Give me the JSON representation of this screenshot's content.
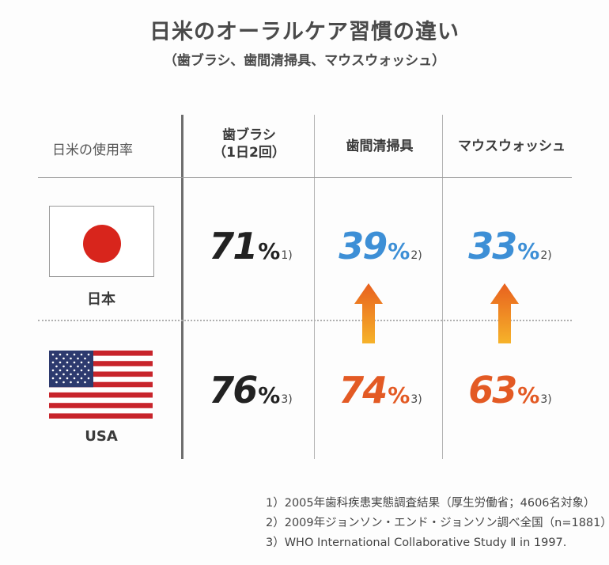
{
  "title": "日米のオーラルケア習慣の違い",
  "subtitle": "（歯ブラシ、歯間清掃具、マウスウォッシュ）",
  "table": {
    "row_header_label": "日米の使用率",
    "columns": [
      {
        "line1": "歯ブラシ",
        "line2": "（1日2回）"
      },
      {
        "line1": "歯間清掃具",
        "line2": ""
      },
      {
        "line1": "マウスウォッシュ",
        "line2": ""
      }
    ],
    "rows": [
      {
        "country": "日本",
        "flag": "japan-flag",
        "cells": [
          {
            "value": "71",
            "unit": "%",
            "ref": "1)",
            "color": "#222222"
          },
          {
            "value": "39",
            "unit": "%",
            "ref": "2)",
            "color": "#3d8fd6"
          },
          {
            "value": "33",
            "unit": "%",
            "ref": "2)",
            "color": "#3d8fd6"
          }
        ]
      },
      {
        "country": "USA",
        "flag": "usa-flag",
        "cells": [
          {
            "value": "76",
            "unit": "%",
            "ref": "3)",
            "color": "#222222"
          },
          {
            "value": "74",
            "unit": "%",
            "ref": "3)",
            "color": "#e35a24"
          },
          {
            "value": "63",
            "unit": "%",
            "ref": "3)",
            "color": "#e35a24"
          }
        ]
      }
    ],
    "arrow_icon": "up-arrow-icon"
  },
  "notes": [
    "1）2005年歯科疾患実態調査結果（厚生労働省；4606名対象）",
    "2）2009年ジョンソン・エンド・ジョンソン調べ全国（n=1881）",
    "3）WHO International Collaborative Study Ⅱ in 1997."
  ]
}
